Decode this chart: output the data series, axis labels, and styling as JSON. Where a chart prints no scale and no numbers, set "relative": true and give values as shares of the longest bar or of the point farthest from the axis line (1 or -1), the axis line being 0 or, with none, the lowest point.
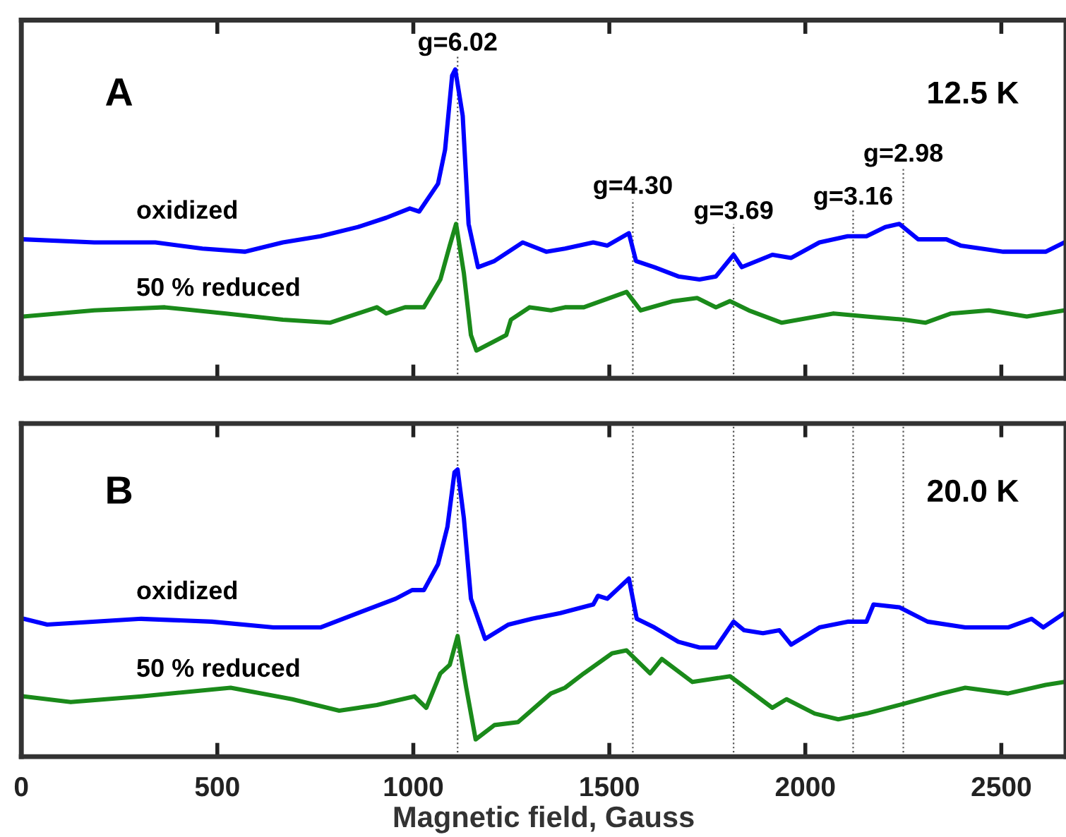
{
  "chart_data": [
    {
      "type": "line",
      "relative": true,
      "xlim": [
        0,
        2665
      ],
      "xticks": [
        0,
        500,
        1000,
        1500,
        2000,
        2500
      ],
      "tick_labels": false,
      "grid": false,
      "legend": false,
      "annotations": [
        "A",
        "12.5 K",
        "g=6.02",
        "g=4.30",
        "g=3.69",
        "g=3.16",
        "g=2.98"
      ],
      "ref_lines": [
        {
          "axis": "x",
          "value": 1113,
          "line_style": "dotted"
        },
        {
          "axis": "x",
          "value": 1560,
          "line_style": "dotted"
        },
        {
          "axis": "x",
          "value": 1817,
          "line_style": "dotted"
        },
        {
          "axis": "x",
          "value": 2122,
          "line_style": "dotted"
        },
        {
          "axis": "x",
          "value": 2250,
          "line_style": "dotted"
        }
      ],
      "series": [
        {
          "name": "oxidized",
          "color": "#0000ff",
          "x": [
            5,
            186,
            342,
            462,
            570,
            667,
            763,
            859,
            931,
            991,
            1015,
            1063,
            1081,
            1099,
            1107,
            1126,
            1141,
            1165,
            1207,
            1279,
            1339,
            1387,
            1459,
            1495,
            1550,
            1568,
            1615,
            1676,
            1730,
            1772,
            1817,
            1838,
            1916,
            1964,
            2036,
            2108,
            2156,
            2204,
            2240,
            2288,
            2360,
            2396,
            2505,
            2613,
            2661
          ],
          "values": [
            0.45,
            0.44,
            0.44,
            0.42,
            0.41,
            0.44,
            0.46,
            0.49,
            0.52,
            0.55,
            0.54,
            0.63,
            0.74,
            0.98,
            1.0,
            0.85,
            0.5,
            0.36,
            0.38,
            0.44,
            0.41,
            0.42,
            0.44,
            0.43,
            0.47,
            0.38,
            0.36,
            0.33,
            0.32,
            0.33,
            0.4,
            0.36,
            0.4,
            0.39,
            0.44,
            0.46,
            0.46,
            0.49,
            0.5,
            0.45,
            0.45,
            0.43,
            0.41,
            0.41,
            0.44
          ]
        },
        {
          "name": "50 % reduced",
          "color": "#1a8a1a",
          "x": [
            5,
            186,
            366,
            522,
            667,
            787,
            859,
            907,
            931,
            979,
            1027,
            1069,
            1093,
            1109,
            1129,
            1147,
            1161,
            1207,
            1237,
            1249,
            1297,
            1351,
            1387,
            1435,
            1544,
            1580,
            1663,
            1724,
            1772,
            1808,
            1856,
            1940,
            2072,
            2156,
            2252,
            2306,
            2372,
            2468,
            2565,
            2661
          ],
          "values": [
            0.2,
            0.22,
            0.23,
            0.21,
            0.19,
            0.18,
            0.21,
            0.23,
            0.21,
            0.23,
            0.23,
            0.32,
            0.43,
            0.5,
            0.34,
            0.14,
            0.09,
            0.12,
            0.14,
            0.19,
            0.23,
            0.22,
            0.23,
            0.23,
            0.28,
            0.22,
            0.25,
            0.26,
            0.23,
            0.25,
            0.22,
            0.18,
            0.21,
            0.2,
            0.19,
            0.18,
            0.21,
            0.22,
            0.2,
            0.22
          ]
        }
      ]
    },
    {
      "type": "line",
      "relative": true,
      "xlim": [
        0,
        2665
      ],
      "xticks": [
        0,
        500,
        1000,
        1500,
        2000,
        2500
      ],
      "tick_labels": "x",
      "xlabel": "Magnetic field, Gauss",
      "grid": false,
      "legend": false,
      "annotations": [
        "B",
        "20.0 K"
      ],
      "ref_lines": [
        {
          "axis": "x",
          "value": 1113,
          "line_style": "dotted"
        },
        {
          "axis": "x",
          "value": 1560,
          "line_style": "dotted"
        },
        {
          "axis": "x",
          "value": 1817,
          "line_style": "dotted"
        },
        {
          "axis": "x",
          "value": 2122,
          "line_style": "dotted"
        },
        {
          "axis": "x",
          "value": 2250,
          "line_style": "dotted"
        }
      ],
      "series": [
        {
          "name": "oxidized",
          "color": "#0000ff",
          "x": [
            6,
            66,
            306,
            486,
            643,
            763,
            859,
            955,
            997,
            1027,
            1063,
            1087,
            1105,
            1113,
            1129,
            1147,
            1183,
            1243,
            1303,
            1375,
            1459,
            1471,
            1495,
            1550,
            1570,
            1615,
            1676,
            1730,
            1772,
            1817,
            1844,
            1892,
            1934,
            1964,
            2036,
            2108,
            2156,
            2174,
            2240,
            2312,
            2408,
            2517,
            2577,
            2607,
            2661
          ],
          "values": [
            0.48,
            0.46,
            0.48,
            0.47,
            0.45,
            0.45,
            0.5,
            0.55,
            0.58,
            0.58,
            0.67,
            0.8,
            0.99,
            1.0,
            0.83,
            0.55,
            0.41,
            0.46,
            0.48,
            0.5,
            0.53,
            0.56,
            0.55,
            0.62,
            0.48,
            0.45,
            0.4,
            0.38,
            0.38,
            0.47,
            0.44,
            0.43,
            0.44,
            0.39,
            0.45,
            0.47,
            0.47,
            0.53,
            0.52,
            0.47,
            0.45,
            0.45,
            0.48,
            0.45,
            0.5
          ]
        },
        {
          "name": "50 % reduced",
          "color": "#1a8a1a",
          "x": [
            6,
            126,
            306,
            534,
            691,
            811,
            907,
            1003,
            1033,
            1069,
            1093,
            1113,
            1135,
            1159,
            1207,
            1267,
            1351,
            1387,
            1435,
            1507,
            1544,
            1604,
            1634,
            1712,
            1760,
            1808,
            1916,
            1952,
            2024,
            2084,
            2156,
            2240,
            2348,
            2408,
            2517,
            2613,
            2661
          ],
          "values": [
            0.21,
            0.19,
            0.21,
            0.24,
            0.2,
            0.16,
            0.18,
            0.21,
            0.17,
            0.29,
            0.32,
            0.42,
            0.24,
            0.06,
            0.11,
            0.12,
            0.22,
            0.24,
            0.29,
            0.36,
            0.37,
            0.29,
            0.34,
            0.26,
            0.27,
            0.28,
            0.17,
            0.2,
            0.15,
            0.13,
            0.15,
            0.18,
            0.22,
            0.24,
            0.22,
            0.25,
            0.26
          ]
        }
      ]
    }
  ]
}
